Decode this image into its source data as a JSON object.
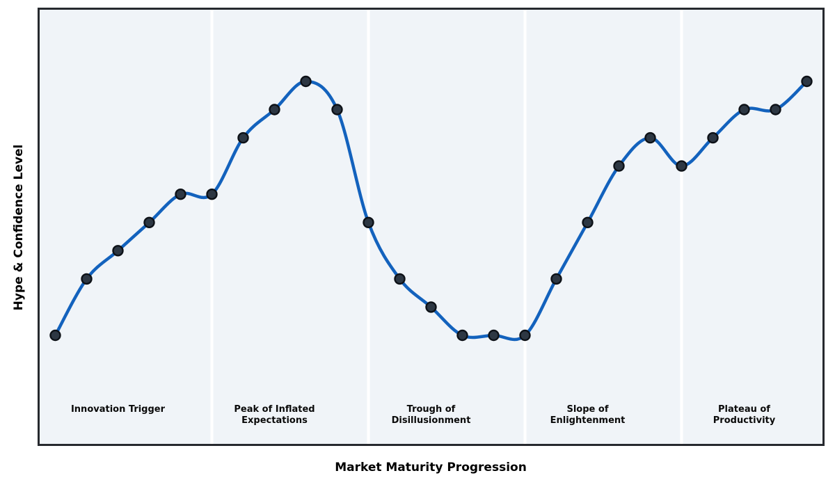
{
  "chart_data": {
    "type": "line",
    "title": "",
    "xlabel": "Market Maturity Progression",
    "ylabel": "Hype & Confidence Level",
    "x": [
      0,
      1,
      2,
      3,
      4,
      5,
      6,
      7,
      8,
      9,
      10,
      11,
      12,
      13,
      14,
      15,
      16,
      17,
      18,
      19,
      20,
      21,
      22,
      23,
      24
    ],
    "values": [
      25,
      38,
      44.5,
      51,
      57.5,
      57.5,
      70.5,
      77,
      83.5,
      77,
      51,
      38,
      31.5,
      25,
      25,
      25,
      38,
      51,
      64,
      70.5,
      64,
      70.5,
      77,
      77,
      83.5
    ],
    "xlim": [
      -0.5,
      24.5
    ],
    "ylim": [
      0,
      100
    ],
    "grid": false,
    "legend": "none",
    "tick_labels": "none",
    "line_style": "smooth-spline",
    "marker": "circle",
    "phases": [
      {
        "label": "Innovation Trigger",
        "lines": [
          "Innovation Trigger"
        ],
        "center_x": 2
      },
      {
        "label": "Peak of Inflated Expectations",
        "lines": [
          "Peak of Inflated",
          "Expectations"
        ],
        "center_x": 7
      },
      {
        "label": "Trough of Disillusionment",
        "lines": [
          "Trough of",
          "Disillusionment"
        ],
        "center_x": 12
      },
      {
        "label": "Slope of Enlightenment",
        "lines": [
          "Slope of",
          "Enlightenment"
        ],
        "center_x": 17
      },
      {
        "label": "Plateau of Productivity",
        "lines": [
          "Plateau of",
          "Productivity"
        ],
        "center_x": 22
      }
    ],
    "phase_separators_x": [
      5,
      10,
      15,
      20
    ]
  },
  "colors": {
    "line": "#1362bd",
    "marker_fill": "#2d3743",
    "marker_edge": "#0d1117",
    "plot_background": "#f0f4f8",
    "figure_background": "#ffffff",
    "plot_border": "#26292e",
    "phase_separator": "#ffffff",
    "label_text": "#0a0a0a"
  }
}
